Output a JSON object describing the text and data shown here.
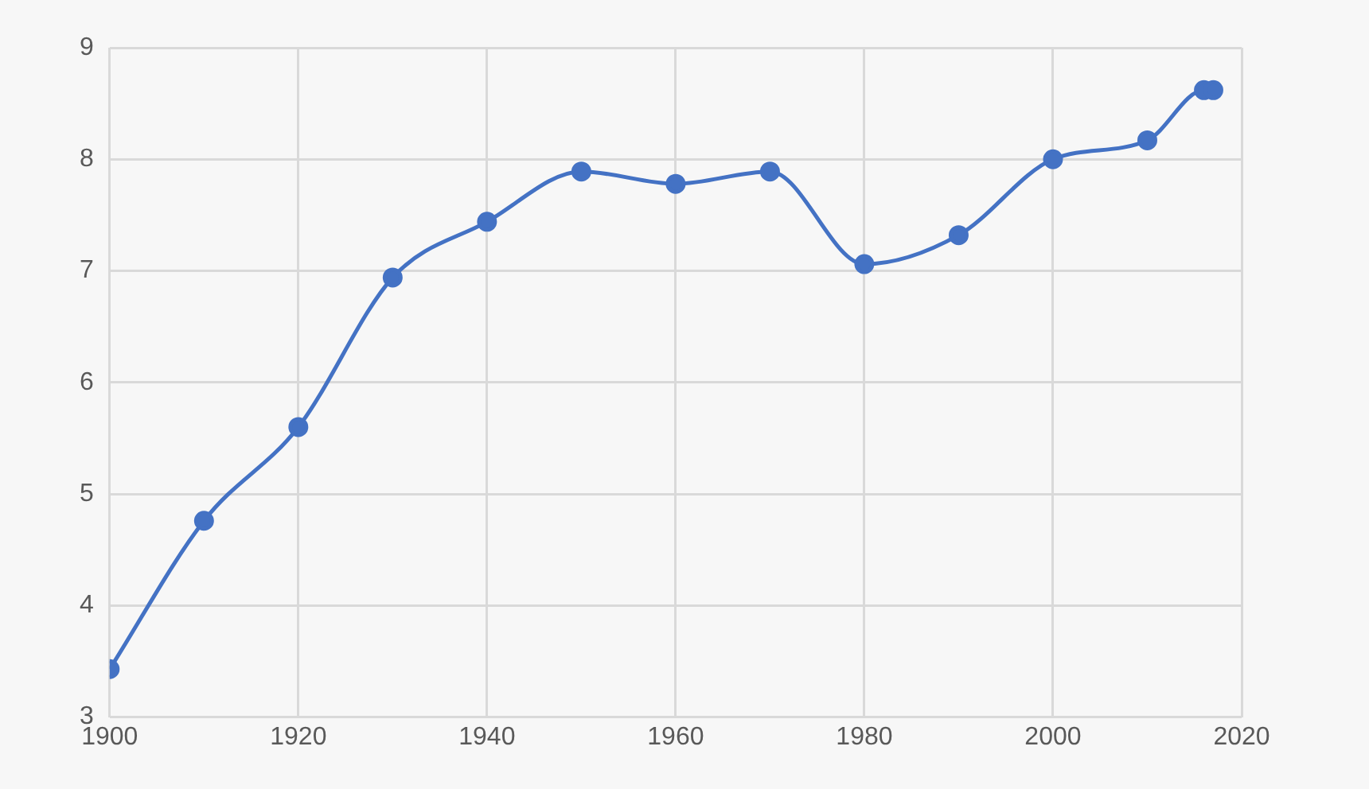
{
  "chart_data": {
    "type": "line",
    "x": [
      1900,
      1910,
      1920,
      1930,
      1940,
      1950,
      1960,
      1970,
      1980,
      1990,
      2000,
      2010,
      2016,
      2017
    ],
    "series": [
      {
        "color": "#4472c4",
        "values": [
          3.43,
          4.76,
          5.6,
          6.94,
          7.44,
          7.89,
          7.78,
          7.89,
          7.06,
          7.32,
          8.0,
          8.17,
          8.62,
          8.62
        ]
      }
    ],
    "xlim": [
      1900,
      2020
    ],
    "xticks": [
      1900,
      1920,
      1940,
      1960,
      1980,
      2000,
      2020
    ],
    "ylim": [
      3,
      9
    ],
    "yticks": [
      3,
      4,
      5,
      6,
      7,
      8,
      9
    ],
    "grid": true,
    "legend": false,
    "marker": "circle",
    "line_style": "solid"
  }
}
